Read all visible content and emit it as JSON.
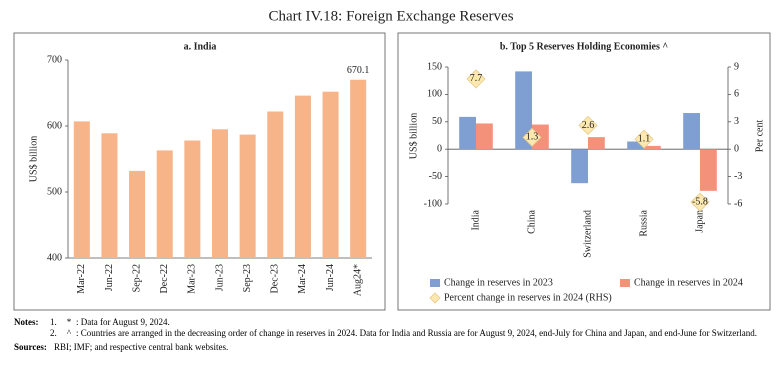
{
  "title": "Chart IV.18: Foreign Exchange Reserves",
  "chart_data": [
    {
      "type": "bar",
      "title": "a. India",
      "ylabel": "US$ billion",
      "categories": [
        "Mar-22",
        "Jun-22",
        "Sep-22",
        "Dec-22",
        "Mar-23",
        "Jun-23",
        "Sep-23",
        "Dec-23",
        "Mar-24",
        "Jun-24",
        "Aug24*"
      ],
      "values": [
        607,
        589,
        532,
        563,
        578,
        595,
        587,
        622,
        646,
        652,
        670.1
      ],
      "value_labels": [
        null,
        null,
        null,
        null,
        null,
        null,
        null,
        null,
        null,
        null,
        "670.1"
      ],
      "color": "#f7b489",
      "ylim": [
        400,
        700
      ],
      "yticks": [
        400,
        500,
        600,
        700
      ],
      "grid": false
    },
    {
      "type": "bar",
      "title": "b. Top 5 Reserves Holding Economies ^",
      "ylabel": "US$ billion",
      "y2label": "Per cent",
      "categories": [
        "India",
        "China",
        "Switzerland",
        "Russia",
        "Japan"
      ],
      "series": [
        {
          "name": "Change in reserves in 2023",
          "color": "#7f9fd3",
          "values": [
            59,
            142,
            -62,
            14,
            66
          ]
        },
        {
          "name": "Change in reserves in 2024",
          "color": "#f4917a",
          "values": [
            47,
            45,
            22,
            6,
            -76
          ]
        },
        {
          "name": "Percent change in reserves in 2024 (RHS)",
          "color": "#fde9b0",
          "axis": "y2",
          "marker": "diamond",
          "values": [
            7.7,
            1.3,
            2.6,
            1.1,
            -5.8
          ]
        }
      ],
      "ylim": [
        -100,
        150
      ],
      "yticks": [
        -100,
        -50,
        0,
        50,
        100,
        150
      ],
      "y2lim": [
        -6,
        9
      ],
      "y2ticks": [
        -6,
        -3,
        0,
        3,
        6,
        9
      ],
      "grid": false,
      "legend": "bottom"
    }
  ],
  "notes": {
    "heading": "Notes:",
    "items": [
      {
        "number": "1.",
        "symbol": "*",
        "text": ": Data for August 9, 2024."
      },
      {
        "number": "2.",
        "symbol": "^",
        "text": ": Countries are arranged in the decreasing order of change in reserves in 2024. Data for India and Russia are for August 9, 2024, end-July for China and Japan, and end-June for Switzerland."
      }
    ],
    "sources_heading": "Sources:",
    "sources": "RBI; IMF; and respective central bank websites."
  }
}
